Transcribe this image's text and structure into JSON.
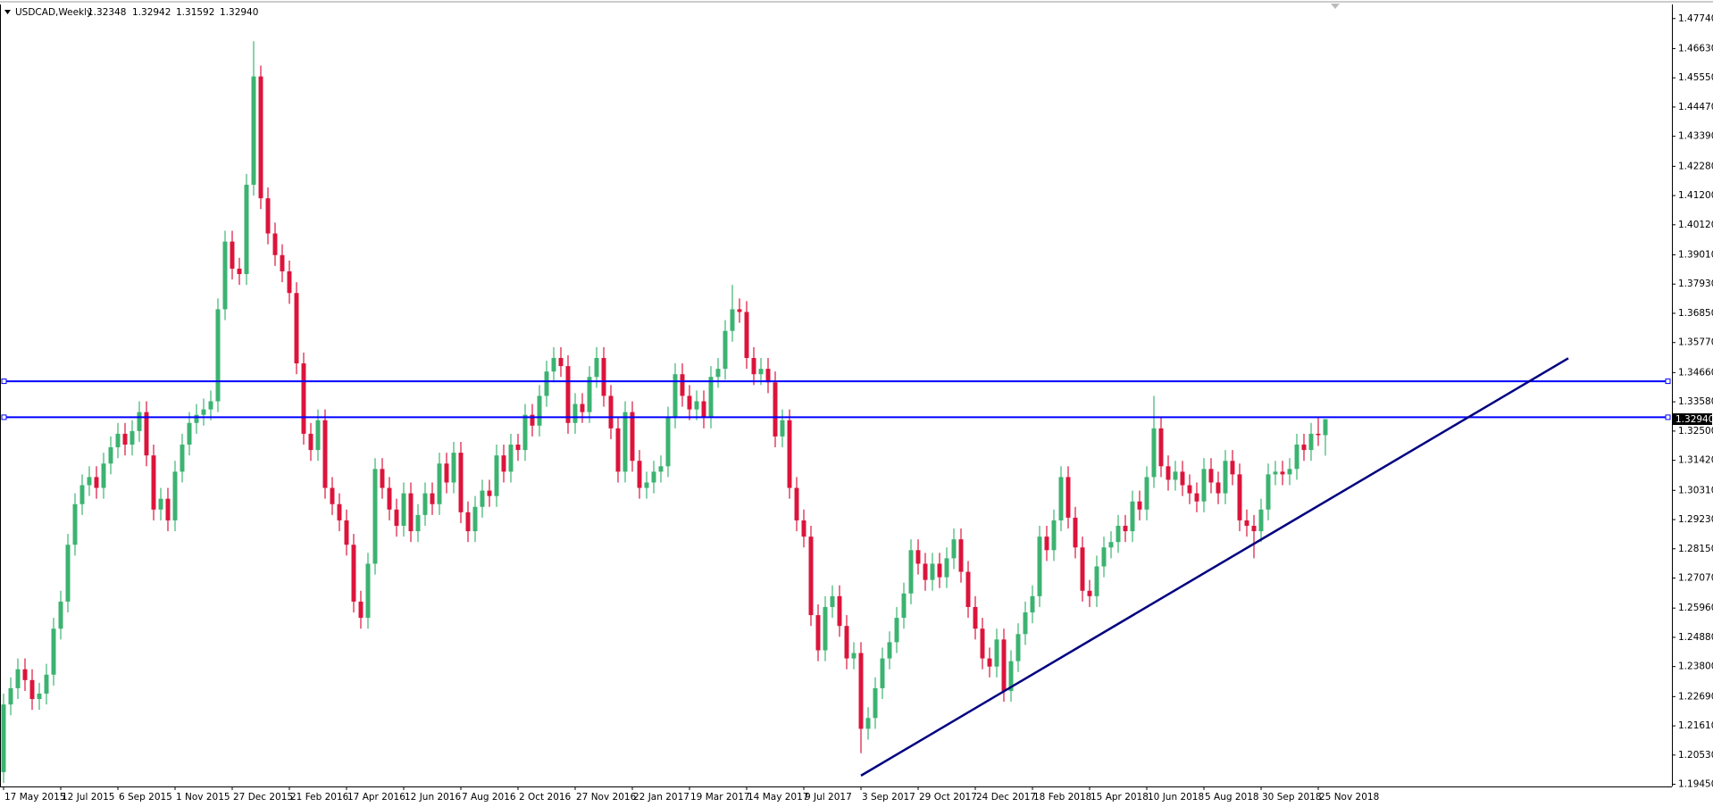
{
  "chart_data": {
    "type": "candlestick",
    "title": "USDCAD,Weekly",
    "header_labels": [
      "1.32348",
      "1.32942",
      "1.31592",
      "1.32940"
    ],
    "up_color": "#3cb371",
    "down_color": "#dc143c",
    "hline_color": "#0000ff",
    "trend_color": "#000080",
    "categories": [
      "17 May 2015",
      null,
      null,
      null,
      null,
      null,
      null,
      null,
      "12 Jul 2015",
      null,
      null,
      null,
      null,
      null,
      null,
      null,
      "6 Sep 2015",
      null,
      null,
      null,
      null,
      null,
      null,
      null,
      "1 Nov 2015",
      null,
      null,
      null,
      null,
      null,
      null,
      null,
      "27 Dec 2015",
      null,
      null,
      null,
      null,
      null,
      null,
      null,
      "21 Feb 2016",
      null,
      null,
      null,
      null,
      null,
      null,
      null,
      "17 Apr 2016",
      null,
      null,
      null,
      null,
      null,
      null,
      null,
      "12 Jun 2016",
      null,
      null,
      null,
      null,
      null,
      null,
      null,
      "7 Aug 2016",
      null,
      null,
      null,
      null,
      null,
      null,
      null,
      "2 Oct 2016",
      null,
      null,
      null,
      null,
      null,
      null,
      null,
      "27 Nov 2016",
      null,
      null,
      null,
      null,
      null,
      null,
      null,
      "22 Jan 2017",
      null,
      null,
      null,
      null,
      null,
      null,
      null,
      "19 Mar 2017",
      null,
      null,
      null,
      null,
      null,
      null,
      null,
      "14 May 2017",
      null,
      null,
      null,
      null,
      null,
      null,
      null,
      "9 Jul 2017",
      null,
      null,
      null,
      null,
      null,
      null,
      null,
      "3 Sep 2017",
      null,
      null,
      null,
      null,
      null,
      null,
      null,
      "29 Oct 2017",
      null,
      null,
      null,
      null,
      null,
      null,
      null,
      "24 Dec 2017",
      null,
      null,
      null,
      null,
      null,
      null,
      null,
      "18 Feb 2018",
      null,
      null,
      null,
      null,
      null,
      null,
      null,
      "15 Apr 2018",
      null,
      null,
      null,
      null,
      null,
      null,
      null,
      "10 Jun 2018",
      null,
      null,
      null,
      null,
      null,
      null,
      null,
      "5 Aug 2018",
      null,
      null,
      null,
      null,
      null,
      null,
      null,
      "30 Sep 2018",
      null,
      null,
      null,
      null,
      null,
      null,
      null,
      "25 Nov 2018",
      null
    ],
    "candles": [
      [
        1.199,
        1.228,
        1.195,
        1.224
      ],
      [
        1.224,
        1.234,
        1.22,
        1.23
      ],
      [
        1.23,
        1.241,
        1.226,
        1.237
      ],
      [
        1.237,
        1.241,
        1.229,
        1.233
      ],
      [
        1.233,
        1.237,
        1.222,
        1.226
      ],
      [
        1.226,
        1.232,
        1.222,
        1.228
      ],
      [
        1.228,
        1.239,
        1.224,
        1.235
      ],
      [
        1.235,
        1.256,
        1.231,
        1.252
      ],
      [
        1.252,
        1.266,
        1.248,
        1.262
      ],
      [
        1.262,
        1.287,
        1.258,
        1.283
      ],
      [
        1.283,
        1.302,
        1.279,
        1.298
      ],
      [
        1.298,
        1.309,
        1.294,
        1.305
      ],
      [
        1.305,
        1.312,
        1.301,
        1.308
      ],
      [
        1.308,
        1.312,
        1.3,
        1.304
      ],
      [
        1.304,
        1.317,
        1.3,
        1.313
      ],
      [
        1.313,
        1.323,
        1.309,
        1.319
      ],
      [
        1.319,
        1.328,
        1.315,
        1.324
      ],
      [
        1.324,
        1.328,
        1.316,
        1.32
      ],
      [
        1.32,
        1.329,
        1.316,
        1.325
      ],
      [
        1.325,
        1.336,
        1.321,
        1.332
      ],
      [
        1.332,
        1.336,
        1.312,
        1.316
      ],
      [
        1.316,
        1.32,
        1.292,
        1.296
      ],
      [
        1.296,
        1.304,
        1.292,
        1.3
      ],
      [
        1.3,
        1.304,
        1.288,
        1.292
      ],
      [
        1.292,
        1.314,
        1.288,
        1.31
      ],
      [
        1.31,
        1.324,
        1.306,
        1.32
      ],
      [
        1.32,
        1.332,
        1.316,
        1.328
      ],
      [
        1.328,
        1.335,
        1.324,
        1.331
      ],
      [
        1.331,
        1.337,
        1.327,
        1.333
      ],
      [
        1.333,
        1.34,
        1.329,
        1.336
      ],
      [
        1.336,
        1.374,
        1.332,
        1.37
      ],
      [
        1.37,
        1.399,
        1.366,
        1.395
      ],
      [
        1.395,
        1.399,
        1.381,
        1.385
      ],
      [
        1.385,
        1.389,
        1.379,
        1.383
      ],
      [
        1.383,
        1.42,
        1.379,
        1.416
      ],
      [
        1.416,
        1.469,
        1.412,
        1.456
      ],
      [
        1.456,
        1.46,
        1.407,
        1.411
      ],
      [
        1.411,
        1.415,
        1.394,
        1.398
      ],
      [
        1.398,
        1.402,
        1.386,
        1.39
      ],
      [
        1.39,
        1.394,
        1.38,
        1.384
      ],
      [
        1.384,
        1.388,
        1.372,
        1.376
      ],
      [
        1.376,
        1.38,
        1.346,
        1.35
      ],
      [
        1.35,
        1.354,
        1.32,
        1.324
      ],
      [
        1.324,
        1.328,
        1.314,
        1.318
      ],
      [
        1.318,
        1.333,
        1.314,
        1.329
      ],
      [
        1.329,
        1.333,
        1.3,
        1.304
      ],
      [
        1.304,
        1.308,
        1.294,
        1.298
      ],
      [
        1.298,
        1.302,
        1.288,
        1.292
      ],
      [
        1.292,
        1.296,
        1.279,
        1.283
      ],
      [
        1.283,
        1.287,
        1.258,
        1.262
      ],
      [
        1.262,
        1.266,
        1.252,
        1.256
      ],
      [
        1.256,
        1.28,
        1.252,
        1.276
      ],
      [
        1.276,
        1.315,
        1.272,
        1.311
      ],
      [
        1.311,
        1.315,
        1.3,
        1.304
      ],
      [
        1.304,
        1.308,
        1.292,
        1.296
      ],
      [
        1.296,
        1.3,
        1.286,
        1.29
      ],
      [
        1.29,
        1.306,
        1.286,
        1.302
      ],
      [
        1.302,
        1.306,
        1.284,
        1.288
      ],
      [
        1.288,
        1.298,
        1.284,
        1.294
      ],
      [
        1.294,
        1.306,
        1.29,
        1.302
      ],
      [
        1.302,
        1.306,
        1.294,
        1.298
      ],
      [
        1.298,
        1.317,
        1.294,
        1.313
      ],
      [
        1.313,
        1.317,
        1.302,
        1.306
      ],
      [
        1.306,
        1.321,
        1.302,
        1.317
      ],
      [
        1.317,
        1.321,
        1.291,
        1.295
      ],
      [
        1.295,
        1.299,
        1.284,
        1.288
      ],
      [
        1.288,
        1.301,
        1.284,
        1.297
      ],
      [
        1.297,
        1.307,
        1.293,
        1.303
      ],
      [
        1.303,
        1.307,
        1.297,
        1.301
      ],
      [
        1.301,
        1.32,
        1.297,
        1.316
      ],
      [
        1.316,
        1.32,
        1.306,
        1.31
      ],
      [
        1.31,
        1.324,
        1.306,
        1.32
      ],
      [
        1.32,
        1.324,
        1.314,
        1.318
      ],
      [
        1.318,
        1.335,
        1.314,
        1.331
      ],
      [
        1.331,
        1.335,
        1.323,
        1.327
      ],
      [
        1.327,
        1.342,
        1.323,
        1.338
      ],
      [
        1.338,
        1.351,
        1.334,
        1.347
      ],
      [
        1.347,
        1.356,
        1.343,
        1.352
      ],
      [
        1.352,
        1.356,
        1.345,
        1.349
      ],
      [
        1.349,
        1.353,
        1.324,
        1.328
      ],
      [
        1.328,
        1.339,
        1.324,
        1.335
      ],
      [
        1.335,
        1.339,
        1.328,
        1.332
      ],
      [
        1.332,
        1.349,
        1.328,
        1.345
      ],
      [
        1.345,
        1.356,
        1.341,
        1.352
      ],
      [
        1.352,
        1.356,
        1.334,
        1.338
      ],
      [
        1.338,
        1.342,
        1.322,
        1.326
      ],
      [
        1.326,
        1.33,
        1.306,
        1.31
      ],
      [
        1.31,
        1.336,
        1.306,
        1.332
      ],
      [
        1.332,
        1.336,
        1.31,
        1.314
      ],
      [
        1.314,
        1.318,
        1.3,
        1.304
      ],
      [
        1.304,
        1.31,
        1.3,
        1.306
      ],
      [
        1.306,
        1.314,
        1.302,
        1.31
      ],
      [
        1.31,
        1.316,
        1.306,
        1.312
      ],
      [
        1.312,
        1.334,
        1.308,
        1.33
      ],
      [
        1.33,
        1.35,
        1.326,
        1.346
      ],
      [
        1.346,
        1.35,
        1.334,
        1.338
      ],
      [
        1.338,
        1.342,
        1.329,
        1.333
      ],
      [
        1.333,
        1.34,
        1.329,
        1.336
      ],
      [
        1.336,
        1.34,
        1.326,
        1.33
      ],
      [
        1.33,
        1.349,
        1.326,
        1.345
      ],
      [
        1.345,
        1.352,
        1.341,
        1.348
      ],
      [
        1.348,
        1.366,
        1.344,
        1.362
      ],
      [
        1.362,
        1.379,
        1.358,
        1.37
      ],
      [
        1.37,
        1.374,
        1.365,
        1.369
      ],
      [
        1.369,
        1.373,
        1.348,
        1.352
      ],
      [
        1.352,
        1.356,
        1.342,
        1.346
      ],
      [
        1.346,
        1.352,
        1.342,
        1.348
      ],
      [
        1.348,
        1.352,
        1.339,
        1.343
      ],
      [
        1.343,
        1.347,
        1.319,
        1.323
      ],
      [
        1.323,
        1.333,
        1.319,
        1.329
      ],
      [
        1.329,
        1.333,
        1.3,
        1.304
      ],
      [
        1.304,
        1.308,
        1.288,
        1.292
      ],
      [
        1.292,
        1.296,
        1.282,
        1.286
      ],
      [
        1.286,
        1.29,
        1.253,
        1.257
      ],
      [
        1.257,
        1.261,
        1.24,
        1.244
      ],
      [
        1.244,
        1.264,
        1.24,
        1.26
      ],
      [
        1.26,
        1.268,
        1.256,
        1.264
      ],
      [
        1.264,
        1.268,
        1.249,
        1.253
      ],
      [
        1.253,
        1.257,
        1.237,
        1.241
      ],
      [
        1.241,
        1.247,
        1.237,
        1.243
      ],
      [
        1.243,
        1.247,
        1.206,
        1.215
      ],
      [
        1.215,
        1.223,
        1.211,
        1.219
      ],
      [
        1.219,
        1.234,
        1.215,
        1.23
      ],
      [
        1.23,
        1.245,
        1.226,
        1.241
      ],
      [
        1.241,
        1.251,
        1.237,
        1.247
      ],
      [
        1.247,
        1.26,
        1.243,
        1.256
      ],
      [
        1.256,
        1.269,
        1.252,
        1.265
      ],
      [
        1.265,
        1.285,
        1.261,
        1.281
      ],
      [
        1.281,
        1.285,
        1.272,
        1.276
      ],
      [
        1.276,
        1.28,
        1.266,
        1.27
      ],
      [
        1.27,
        1.28,
        1.266,
        1.276
      ],
      [
        1.276,
        1.28,
        1.267,
        1.271
      ],
      [
        1.271,
        1.282,
        1.267,
        1.278
      ],
      [
        1.278,
        1.289,
        1.274,
        1.285
      ],
      [
        1.285,
        1.289,
        1.269,
        1.273
      ],
      [
        1.273,
        1.277,
        1.256,
        1.26
      ],
      [
        1.26,
        1.264,
        1.248,
        1.252
      ],
      [
        1.252,
        1.256,
        1.237,
        1.241
      ],
      [
        1.241,
        1.245,
        1.234,
        1.238
      ],
      [
        1.238,
        1.252,
        1.234,
        1.248
      ],
      [
        1.248,
        1.252,
        1.225,
        1.229
      ],
      [
        1.229,
        1.244,
        1.225,
        1.24
      ],
      [
        1.24,
        1.254,
        1.236,
        1.25
      ],
      [
        1.25,
        1.262,
        1.246,
        1.258
      ],
      [
        1.258,
        1.268,
        1.254,
        1.264
      ],
      [
        1.264,
        1.29,
        1.26,
        1.286
      ],
      [
        1.286,
        1.29,
        1.277,
        1.281
      ],
      [
        1.281,
        1.296,
        1.277,
        1.292
      ],
      [
        1.292,
        1.312,
        1.288,
        1.308
      ],
      [
        1.308,
        1.312,
        1.289,
        1.293
      ],
      [
        1.293,
        1.297,
        1.278,
        1.282
      ],
      [
        1.282,
        1.286,
        1.262,
        1.266
      ],
      [
        1.266,
        1.27,
        1.26,
        1.264
      ],
      [
        1.264,
        1.279,
        1.26,
        1.275
      ],
      [
        1.275,
        1.286,
        1.271,
        1.282
      ],
      [
        1.282,
        1.288,
        1.278,
        1.284
      ],
      [
        1.284,
        1.294,
        1.28,
        1.29
      ],
      [
        1.29,
        1.294,
        1.284,
        1.288
      ],
      [
        1.288,
        1.303,
        1.284,
        1.299
      ],
      [
        1.299,
        1.303,
        1.292,
        1.296
      ],
      [
        1.296,
        1.312,
        1.292,
        1.308
      ],
      [
        1.308,
        1.338,
        1.304,
        1.326
      ],
      [
        1.326,
        1.33,
        1.308,
        1.312
      ],
      [
        1.312,
        1.316,
        1.303,
        1.307
      ],
      [
        1.307,
        1.314,
        1.303,
        1.31
      ],
      [
        1.31,
        1.314,
        1.301,
        1.305
      ],
      [
        1.305,
        1.309,
        1.298,
        1.302
      ],
      [
        1.302,
        1.306,
        1.295,
        1.299
      ],
      [
        1.299,
        1.315,
        1.295,
        1.311
      ],
      [
        1.311,
        1.315,
        1.302,
        1.306
      ],
      [
        1.306,
        1.31,
        1.298,
        1.302
      ],
      [
        1.302,
        1.318,
        1.298,
        1.314
      ],
      [
        1.314,
        1.318,
        1.305,
        1.309
      ],
      [
        1.309,
        1.313,
        1.288,
        1.292
      ],
      [
        1.292,
        1.296,
        1.286,
        1.29
      ],
      [
        1.29,
        1.294,
        1.278,
        1.288
      ],
      [
        1.288,
        1.3,
        1.284,
        1.296
      ],
      [
        1.296,
        1.313,
        1.292,
        1.309
      ],
      [
        1.309,
        1.314,
        1.305,
        1.31
      ],
      [
        1.31,
        1.314,
        1.305,
        1.309
      ],
      [
        1.309,
        1.315,
        1.305,
        1.311
      ],
      [
        1.311,
        1.324,
        1.307,
        1.32
      ],
      [
        1.32,
        1.324,
        1.314,
        1.318
      ],
      [
        1.318,
        1.328,
        1.314,
        1.324
      ],
      [
        1.324,
        1.33,
        1.3195,
        1.32348
      ],
      [
        1.32348,
        1.32942,
        1.31592,
        1.3294
      ]
    ],
    "hlines": [
      1.3434,
      1.3301
    ],
    "trendline": {
      "x": [
        120,
        219
      ],
      "y": [
        1.1977,
        1.3519
      ]
    },
    "xlim": [
      -0.5,
      233.5
    ],
    "ylim": [
      1.1937,
      1.4826
    ],
    "yticks": [
      {
        "value": 1.4774,
        "label": "1.47740"
      },
      {
        "value": 1.4663,
        "label": "1.46630"
      },
      {
        "value": 1.4555,
        "label": "1.45550"
      },
      {
        "value": 1.4447,
        "label": "1.44470"
      },
      {
        "value": 1.4339,
        "label": "1.43390"
      },
      {
        "value": 1.4228,
        "label": "1.42280"
      },
      {
        "value": 1.412,
        "label": "1.41200"
      },
      {
        "value": 1.4012,
        "label": "1.40120"
      },
      {
        "value": 1.3901,
        "label": "1.39010"
      },
      {
        "value": 1.3793,
        "label": "1.37930"
      },
      {
        "value": 1.3685,
        "label": "1.36850"
      },
      {
        "value": 1.3577,
        "label": "1.35770"
      },
      {
        "value": 1.3466,
        "label": "1.34660"
      },
      {
        "value": 1.3358,
        "label": "1.33580"
      },
      {
        "value": 1.325,
        "label": "1.32500"
      },
      {
        "value": 1.3142,
        "label": "1.31420"
      },
      {
        "value": 1.3031,
        "label": "1.30310"
      },
      {
        "value": 1.2923,
        "label": "1.29230"
      },
      {
        "value": 1.2815,
        "label": "1.28150"
      },
      {
        "value": 1.2707,
        "label": "1.27070"
      },
      {
        "value": 1.2596,
        "label": "1.25960"
      },
      {
        "value": 1.2488,
        "label": "1.24880"
      },
      {
        "value": 1.238,
        "label": "1.23800"
      },
      {
        "value": 1.2269,
        "label": "1.22690"
      },
      {
        "value": 1.2161,
        "label": "1.21610"
      },
      {
        "value": 1.2053,
        "label": "1.20530"
      },
      {
        "value": 1.1945,
        "label": "1.19450"
      }
    ],
    "grid": false
  }
}
